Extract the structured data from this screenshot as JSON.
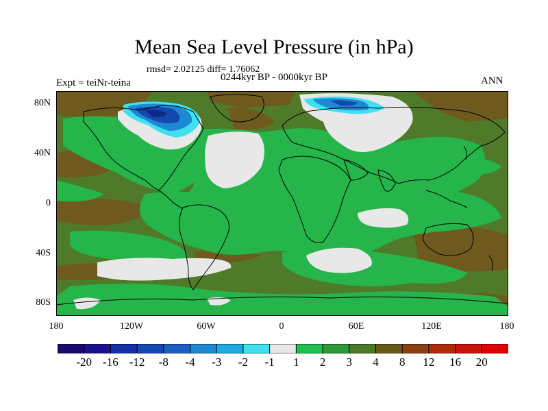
{
  "title": "Mean Sea Level Pressure (in hPa)",
  "stats": "rmsd= 2.02125 diff= 1.76062",
  "period": "0244kyr BP - 0000kyr BP",
  "experiment": "Expt = teiNr-teina",
  "season": "ANN",
  "lat_labels": [
    "80N",
    "40N",
    "0",
    "40S",
    "80S"
  ],
  "lon_labels": [
    "180",
    "120W",
    "60W",
    "0",
    "60E",
    "120E",
    "180"
  ],
  "colorbar": {
    "labels": [
      "-20",
      "-16",
      "-12",
      "-8",
      "-4",
      "-3",
      "-2",
      "-1",
      "1",
      "2",
      "3",
      "4",
      "8",
      "12",
      "16",
      "20"
    ],
    "colors": [
      "#1a0a6e",
      "#1a1090",
      "#1530a8",
      "#1448b0",
      "#1a60c0",
      "#1e88d0",
      "#20a8e0",
      "#40e0f0",
      "#e8e8e8",
      "#20c050",
      "#2a9a3a",
      "#4a7a28",
      "#6a5a18",
      "#8a4010",
      "#b02a0a",
      "#c8140a",
      "#e00000"
    ]
  },
  "colors": {
    "land_outline": "#000000",
    "base_field": "#4f7a2a",
    "positive_small": "#25b54a",
    "near_zero": "#e8e8e8",
    "negative": "#1e88d0",
    "strong_negative": "#0e3a9a",
    "high_positive": "#7a5010"
  }
}
